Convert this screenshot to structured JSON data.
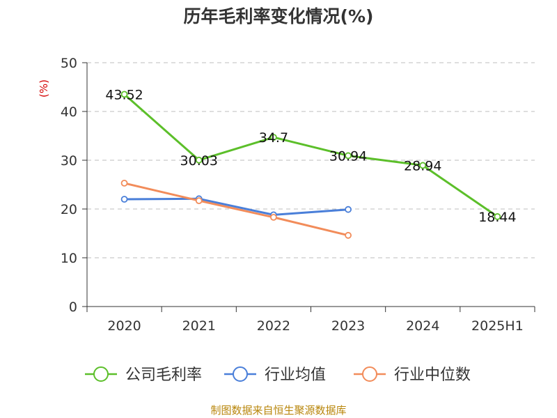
{
  "title": "历年毛利率变化情况(%)",
  "y_unit": "(%)",
  "source": "制图数据来自恒生聚源数据库",
  "chart_data": {
    "type": "line",
    "title": "历年毛利率变化情况(%)",
    "ylabel": "(%)",
    "xlabel": "",
    "ylim": [
      0,
      50
    ],
    "yticks": [
      0,
      10,
      20,
      30,
      40,
      50
    ],
    "grid": true,
    "legend_position": "bottom",
    "categories": [
      "2020",
      "2021",
      "2022",
      "2023",
      "2024",
      "2025H1"
    ],
    "series": [
      {
        "name": "公司毛利率",
        "color": "#5cbf2a",
        "values": [
          43.52,
          30.03,
          34.7,
          30.94,
          28.94,
          18.44
        ],
        "labels": [
          "43.52",
          "30.03",
          "34.7",
          "30.94",
          "28.94",
          "18.44"
        ]
      },
      {
        "name": "行业均值",
        "color": "#4a7fd9",
        "values": [
          22.0,
          22.1,
          18.8,
          19.9,
          null,
          null
        ]
      },
      {
        "name": "行业中位数",
        "color": "#f28c5a",
        "values": [
          25.3,
          21.7,
          18.3,
          14.6,
          null,
          null
        ]
      }
    ]
  }
}
